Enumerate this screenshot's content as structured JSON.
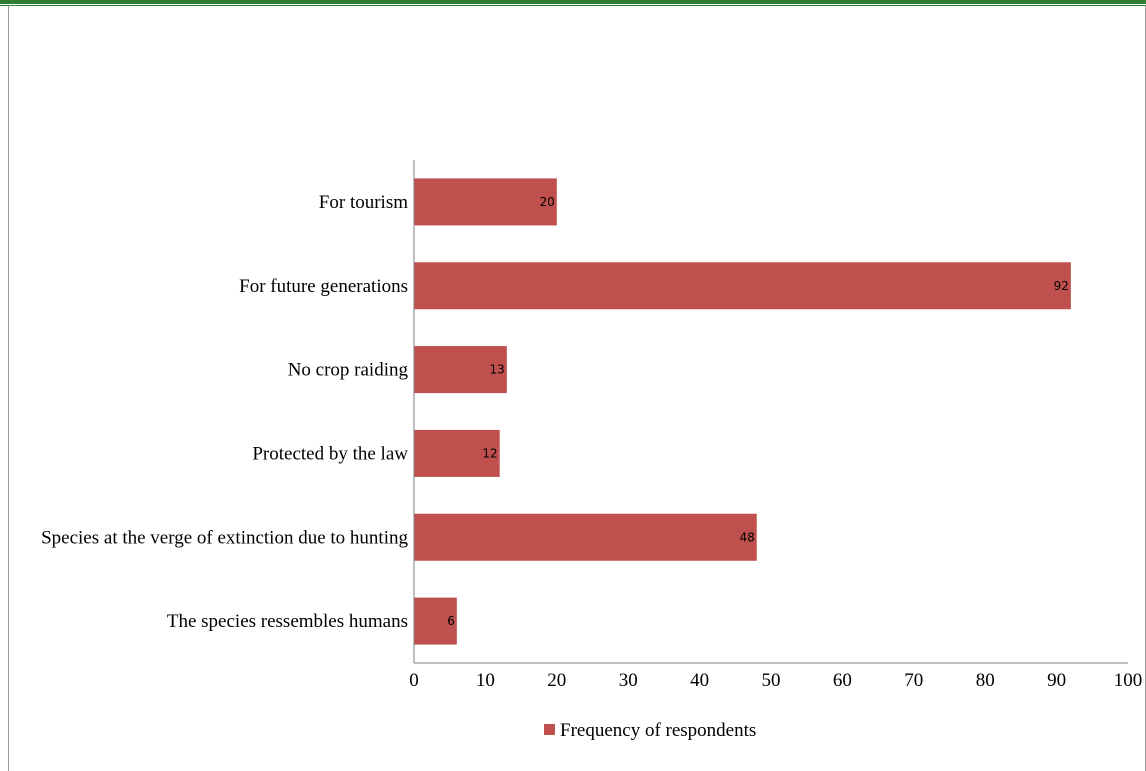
{
  "chart_data": {
    "type": "bar",
    "orientation": "horizontal",
    "categories": [
      "For tourism",
      "For future generations",
      "No crop raiding",
      "Protected by the law",
      "Species at the verge of extinction due to hunting",
      "The species ressembles humans"
    ],
    "series": [
      {
        "name": "Frequency of respondents",
        "values": [
          20,
          92,
          13,
          12,
          48,
          6
        ],
        "color": "#c0504d"
      }
    ],
    "xlim": [
      0,
      100
    ],
    "xticks": [
      0,
      10,
      20,
      30,
      40,
      50,
      60,
      70,
      80,
      90,
      100
    ],
    "grid": false,
    "legend": "bottom",
    "title": "",
    "xlabel": "",
    "ylabel": ""
  }
}
